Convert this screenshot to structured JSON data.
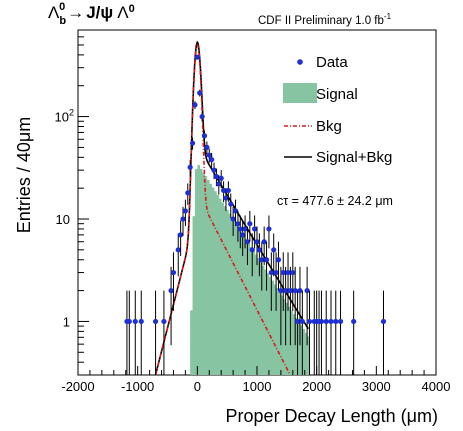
{
  "chart_data": {
    "type": "scatter",
    "title": "Λb0 → J/ψ Λ0",
    "title_parts": {
      "lambda": "Λ",
      "sub": "b",
      "sup": "0",
      "arrow": "→",
      "jpsi": "J/ψ",
      "lambda2": "Λ",
      "sup2": "0"
    },
    "subtitle": "CDF II Preliminary 1.0 fb",
    "subtitle_sup": "-1",
    "xlabel": "Proper Decay Length (μm)",
    "ylabel": "Entries / 40μm",
    "annotation": "cτ = 477.6 ± 24.2 μm",
    "xlim": [
      -2000,
      4000
    ],
    "ylim": [
      0.3,
      700
    ],
    "log_y": true,
    "grid": false,
    "legend_position": "top-right",
    "x_ticks": [
      -2000,
      -1000,
      0,
      1000,
      2000,
      3000,
      4000
    ],
    "y_ticks": [
      {
        "value": 1,
        "label": "1"
      },
      {
        "value": 10,
        "label": "10"
      },
      {
        "value": 100,
        "label": "10",
        "sup": "2"
      }
    ],
    "colors": {
      "data": "#1f2fd6",
      "signal": "#86c4a2",
      "bkg": "#d81a1a",
      "total": "#000000"
    },
    "legend": [
      {
        "key": "data",
        "label": "Data"
      },
      {
        "key": "signal",
        "label": "Signal"
      },
      {
        "key": "bkg",
        "label": "Bkg"
      },
      {
        "key": "total",
        "label": "Signal+Bkg"
      }
    ],
    "series": [
      {
        "name": "Data",
        "points": [
          [
            -1180,
            1
          ],
          [
            -1140,
            1
          ],
          [
            -1040,
            1
          ],
          [
            -940,
            1
          ],
          [
            -700,
            1
          ],
          [
            -560,
            1
          ],
          [
            -440,
            2
          ],
          [
            -400,
            3
          ],
          [
            -320,
            5
          ],
          [
            -280,
            7
          ],
          [
            -240,
            10
          ],
          [
            -200,
            12
          ],
          [
            -160,
            18
          ],
          [
            -120,
            32
          ],
          [
            -80,
            55
          ],
          [
            -40,
            130
          ],
          [
            0,
            380
          ],
          [
            40,
            170
          ],
          [
            80,
            100
          ],
          [
            120,
            65
          ],
          [
            160,
            50
          ],
          [
            200,
            42
          ],
          [
            240,
            38
          ],
          [
            280,
            30
          ],
          [
            320,
            26
          ],
          [
            360,
            22
          ],
          [
            400,
            25
          ],
          [
            440,
            19
          ],
          [
            480,
            16
          ],
          [
            520,
            19
          ],
          [
            560,
            14
          ],
          [
            600,
            10
          ],
          [
            640,
            12
          ],
          [
            680,
            9
          ],
          [
            720,
            8
          ],
          [
            760,
            7
          ],
          [
            800,
            8
          ],
          [
            840,
            6
          ],
          [
            880,
            9
          ],
          [
            920,
            5
          ],
          [
            960,
            8
          ],
          [
            1000,
            6
          ],
          [
            1040,
            5
          ],
          [
            1080,
            4
          ],
          [
            1120,
            6
          ],
          [
            1160,
            4
          ],
          [
            1200,
            8
          ],
          [
            1240,
            3
          ],
          [
            1280,
            5
          ],
          [
            1320,
            3
          ],
          [
            1360,
            4
          ],
          [
            1400,
            2
          ],
          [
            1440,
            3
          ],
          [
            1480,
            2
          ],
          [
            1520,
            3
          ],
          [
            1560,
            2
          ],
          [
            1600,
            3
          ],
          [
            1640,
            2
          ],
          [
            1680,
            1
          ],
          [
            1720,
            2
          ],
          [
            1760,
            1
          ],
          [
            1840,
            2
          ],
          [
            1880,
            1
          ],
          [
            1960,
            1
          ],
          [
            2000,
            1
          ],
          [
            2040,
            1
          ],
          [
            2080,
            1
          ],
          [
            2160,
            1
          ],
          [
            2240,
            1
          ],
          [
            2320,
            1
          ],
          [
            2400,
            1
          ],
          [
            2620,
            1
          ],
          [
            3120,
            1
          ]
        ]
      },
      {
        "name": "Signal",
        "x_start": -120,
        "x_end": 1860,
        "peak_x": 0,
        "peak_y": 35,
        "decay_length": 477.6
      },
      {
        "name": "Bkg",
        "peak_y": 480,
        "core_width": 45,
        "pos_tail_amp": 18,
        "pos_tail_len": 380,
        "neg_tail_amp": 12,
        "neg_tail_len": 190,
        "x_start": -1130,
        "x_end": 1830
      },
      {
        "name": "Signal+Bkg",
        "x_start": -1130,
        "x_end": 2480
      }
    ]
  }
}
